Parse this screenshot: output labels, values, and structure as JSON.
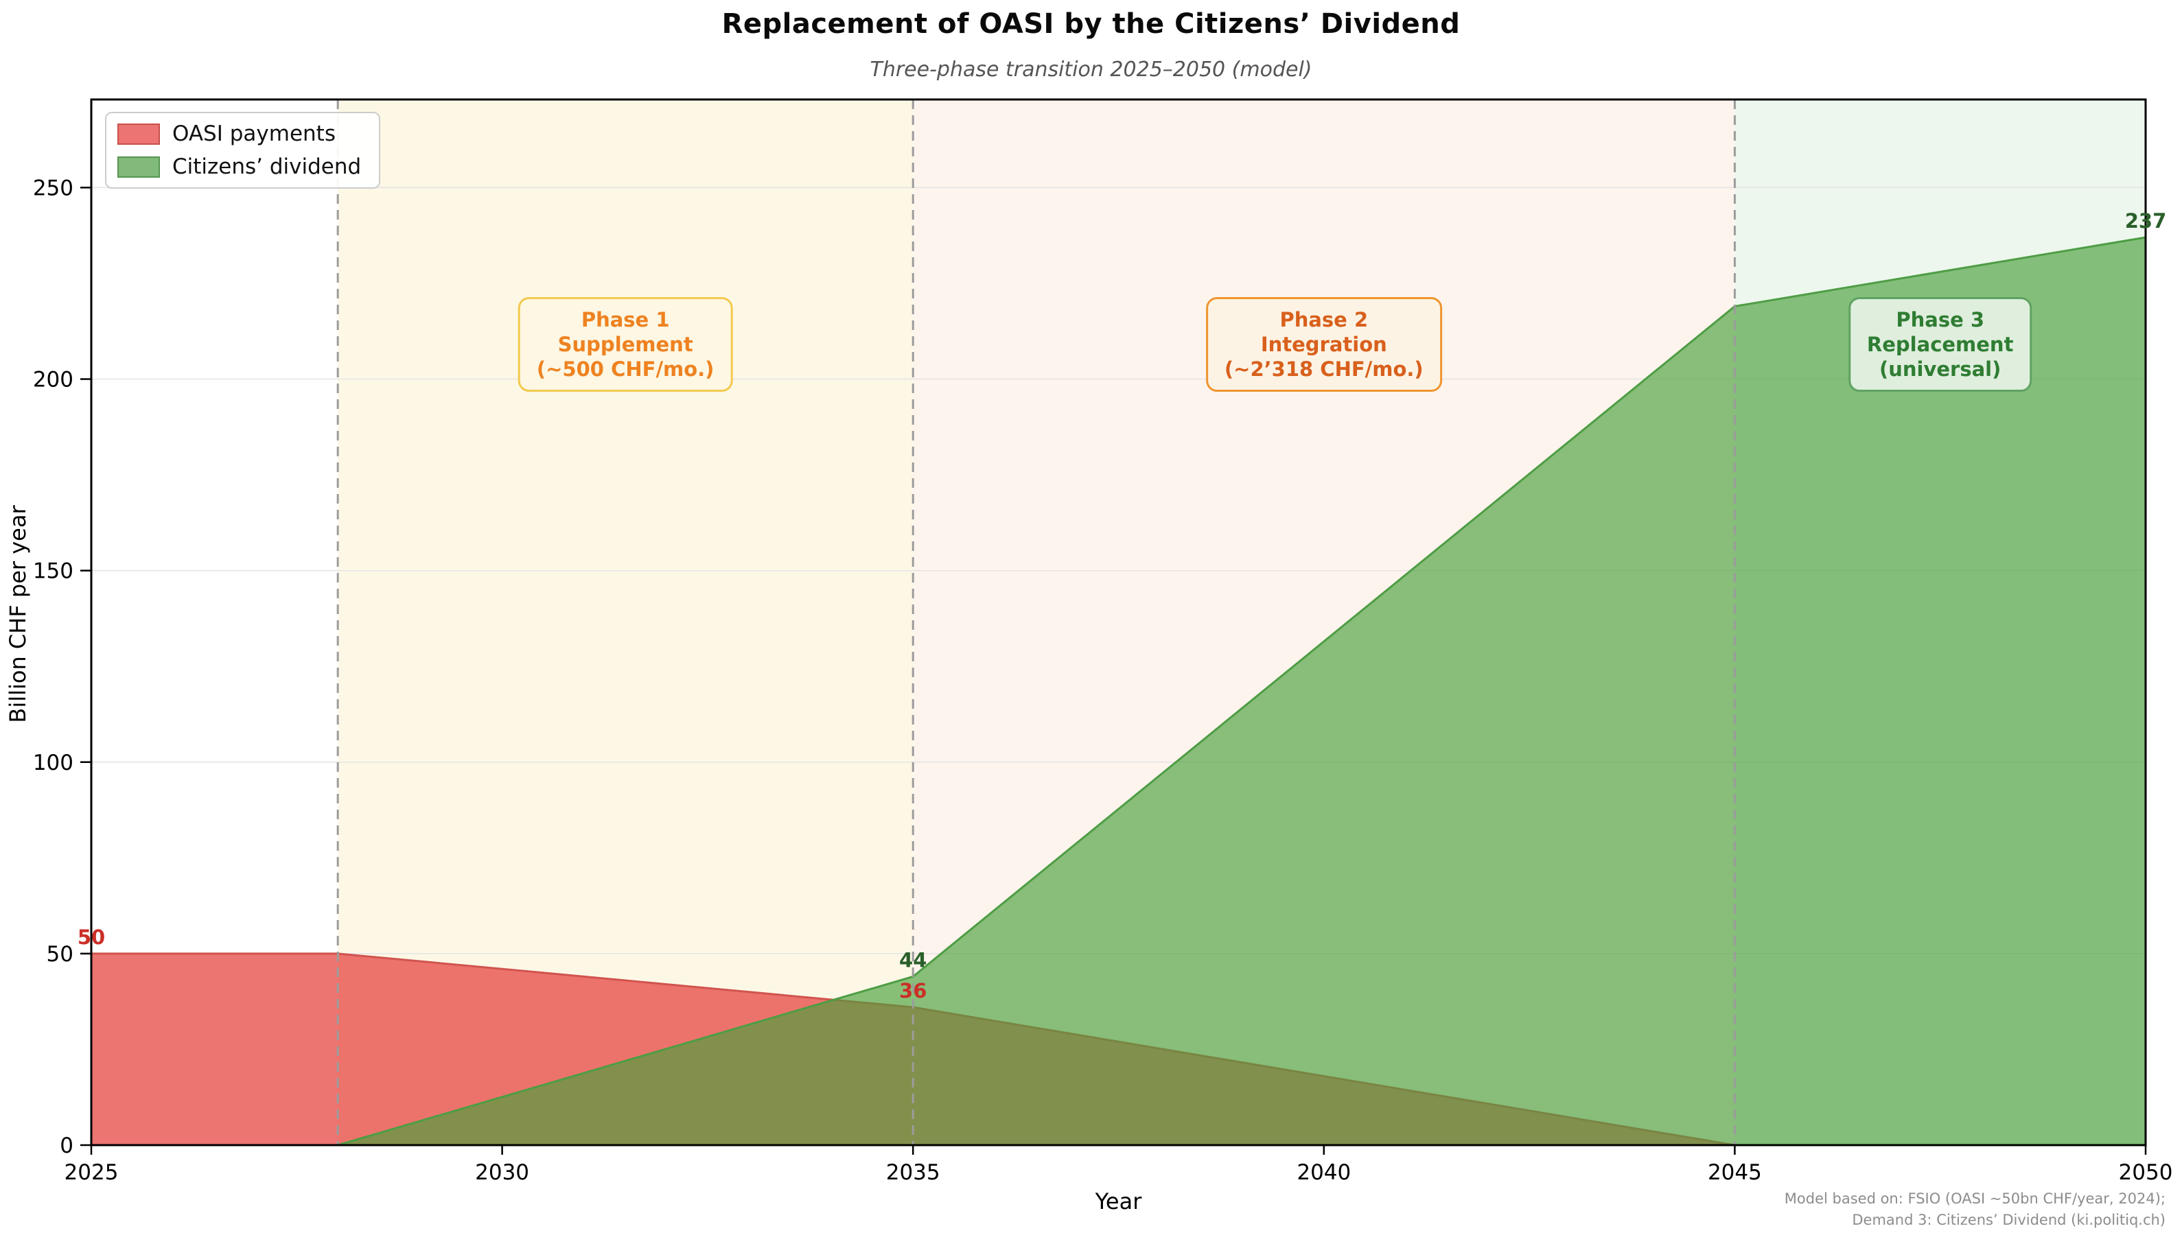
{
  "header": {
    "title": "Replacement of OASI by the Citizens’ Dividend",
    "subtitle": "Three-phase transition 2025–2050 (model)"
  },
  "chart_data": {
    "type": "area",
    "title": "Replacement of OASI by the Citizens’ Dividend",
    "subtitle": "Three-phase transition 2025–2050 (model)",
    "xlabel": "Year",
    "ylabel": "Billion CHF per year",
    "xlim": [
      2025,
      2050
    ],
    "ylim": [
      0,
      273
    ],
    "xticks": [
      2025,
      2030,
      2035,
      2040,
      2045,
      2050
    ],
    "yticks": [
      0,
      50,
      100,
      150,
      200,
      250
    ],
    "grid": true,
    "x": [
      2025,
      2028,
      2035,
      2045,
      2050
    ],
    "series": [
      {
        "name": "OASI payments",
        "values": [
          50,
          50,
          36,
          0,
          0
        ],
        "fill": "rgba(228,58,54,0.70)",
        "edge": "#d0544f",
        "swatch_fill": "#ec7473",
        "swatch_edge": "#c7504a"
      },
      {
        "name": "Citizens’ dividend",
        "values": [
          0,
          0,
          44,
          219,
          237
        ],
        "fill": "rgba(74,160,60,0.65)",
        "edge": "#4e9d44",
        "swatch_fill": "#82ba79",
        "swatch_edge": "#55964f"
      }
    ],
    "bands": [
      {
        "from": 2028,
        "to": 2035,
        "color": "#fdf8e6"
      },
      {
        "from": 2035,
        "to": 2045,
        "color": "#fdf4ee"
      },
      {
        "from": 2045,
        "to": 2050,
        "color": "#edf7ee"
      }
    ],
    "phase_lines": {
      "x": [
        2028,
        2035,
        2045
      ],
      "color": "#9c9c9c"
    },
    "point_labels": [
      {
        "text": "50",
        "x": 2025,
        "y": 50,
        "color": "#cb2f27"
      },
      {
        "text": "44",
        "x": 2035,
        "y": 44,
        "color": "#2a5f2a"
      },
      {
        "text": "36",
        "x": 2035,
        "y": 36,
        "color": "#cb2f27"
      },
      {
        "text": "237",
        "x": 2050,
        "y": 237,
        "color": "#2a5f2a"
      }
    ],
    "annotations": [
      {
        "lines": [
          "Phase 1",
          "Supplement",
          "(~500 CHF/mo.)"
        ],
        "x": 2031.5,
        "y": 209,
        "text_color": "#ee8220",
        "border_color": "#f3c94e",
        "bg_color": "#fdf7e3"
      },
      {
        "lines": [
          "Phase 2",
          "Integration",
          "(~2’318 CHF/mo.)"
        ],
        "x": 2040,
        "y": 209,
        "text_color": "#d8601c",
        "border_color": "#ef9530",
        "bg_color": "#fdf3e4"
      },
      {
        "lines": [
          "Phase 3",
          "Replacement",
          "(universal)"
        ],
        "x": 2047.5,
        "y": 209,
        "text_color": "#2f7d33",
        "border_color": "#5fa361",
        "bg_color": "#dfeedd"
      }
    ],
    "style": {
      "grid_color": "#e3e3e3",
      "spine_color": "#000000",
      "tick_color": "#000000"
    }
  },
  "legend": {
    "items": [
      {
        "label": "OASI payments"
      },
      {
        "label": "Citizens’ dividend"
      }
    ]
  },
  "footer": {
    "line1": "Model based on: FSIO (OASI ~50bn CHF/year, 2024);",
    "line2": "Demand 3: Citizens’ Dividend (ki.politiq.ch)"
  }
}
